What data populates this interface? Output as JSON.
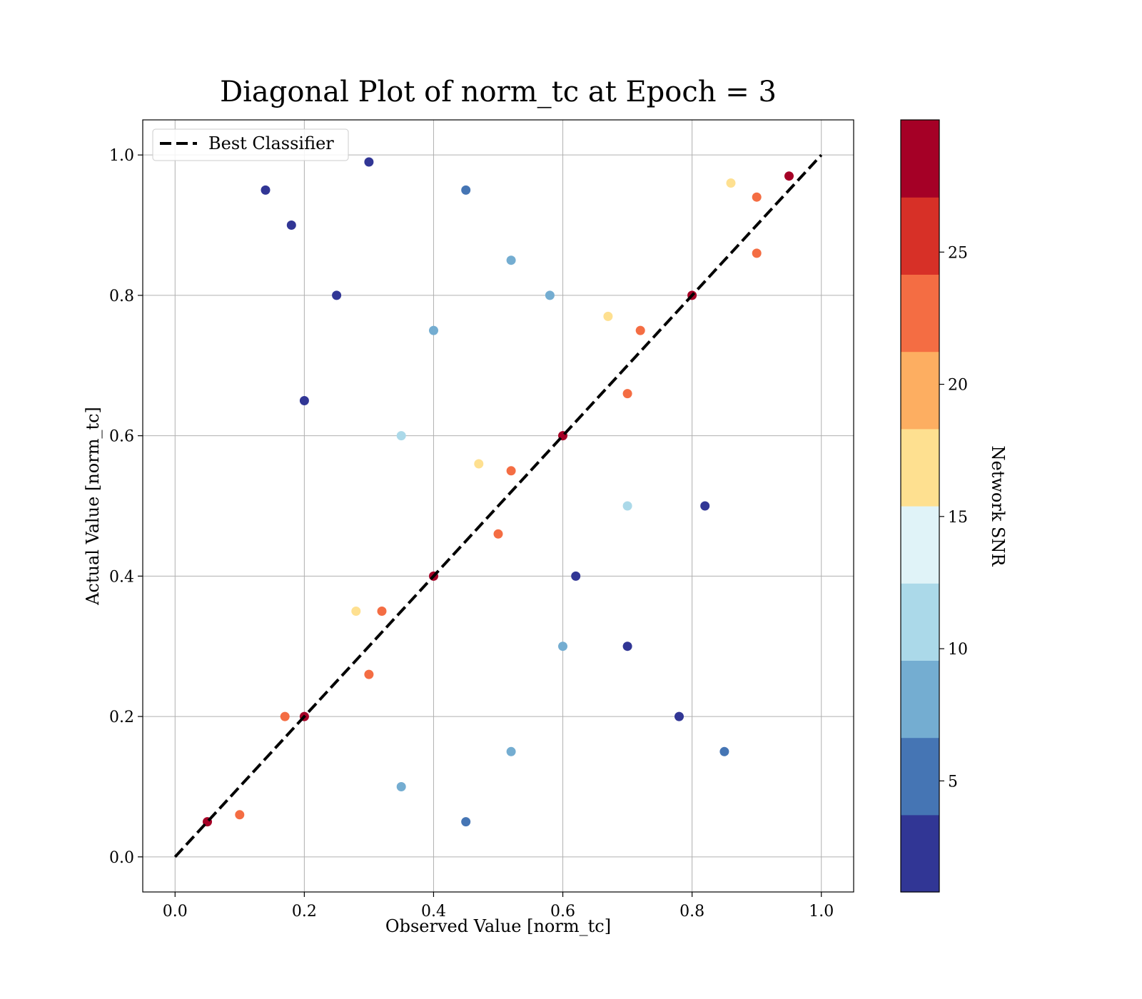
{
  "chart_data": {
    "type": "scatter",
    "title": "Diagonal Plot of norm_tc at Epoch = 3",
    "xlabel": "Observed Value [norm_tc]",
    "ylabel": "Actual Value [norm_tc]",
    "xlim": [
      -0.05,
      1.05
    ],
    "ylim": [
      -0.05,
      1.05
    ],
    "xticks": [
      "0.0",
      "0.2",
      "0.4",
      "0.6",
      "0.8",
      "1.0"
    ],
    "yticks": [
      "0.0",
      "0.2",
      "0.4",
      "0.6",
      "0.8",
      "1.0"
    ],
    "grid": true,
    "legend": {
      "placement": "top-left",
      "entries": [
        {
          "label": "Best Classifier",
          "style": "dashed",
          "color": "#000000"
        }
      ]
    },
    "reference_line": {
      "label": "Best Classifier",
      "x": [
        0.0,
        1.0
      ],
      "y": [
        0.0,
        1.0
      ]
    },
    "colorbar": {
      "label": "Network SNR",
      "range": [
        0.8,
        30.0
      ],
      "ticks": [
        "5",
        "10",
        "15",
        "20",
        "25"
      ],
      "tick_values": [
        5,
        10,
        15,
        20,
        25
      ],
      "colors": [
        "#313695",
        "#4575b4",
        "#74add1",
        "#abd9e9",
        "#e0f3f8",
        "#fee090",
        "#fdae61",
        "#f46d43",
        "#d73027",
        "#a50026"
      ]
    },
    "series": [
      {
        "x": [
          0.05,
          0.2,
          0.4,
          0.6,
          0.8,
          0.95
        ],
        "y": [
          0.05,
          0.2,
          0.4,
          0.6,
          0.8,
          0.97
        ],
        "snr": [
          29,
          29,
          29,
          29,
          29,
          29
        ]
      },
      {
        "x": [
          0.17,
          0.32,
          0.52,
          0.72,
          0.9
        ],
        "y": [
          0.2,
          0.35,
          0.55,
          0.75,
          0.94
        ],
        "snr": [
          22,
          22,
          22,
          22,
          22
        ]
      },
      {
        "x": [
          0.28,
          0.47,
          0.67,
          0.86
        ],
        "y": [
          0.35,
          0.56,
          0.77,
          0.96
        ],
        "snr": [
          17,
          17,
          17,
          17
        ]
      },
      {
        "x": [
          0.1,
          0.3,
          0.5,
          0.7,
          0.9
        ],
        "y": [
          0.06,
          0.26,
          0.46,
          0.66,
          0.86
        ],
        "snr": [
          23,
          23,
          23,
          23,
          23
        ]
      },
      {
        "x": [
          0.35,
          0.45,
          0.52,
          0.6,
          0.7
        ],
        "y": [
          0.1,
          0.05,
          0.15,
          0.3,
          0.5
        ],
        "snr": [
          8,
          6,
          9,
          7,
          10
        ]
      },
      {
        "x": [
          0.45,
          0.52,
          0.58,
          0.4,
          0.35
        ],
        "y": [
          0.95,
          0.85,
          0.8,
          0.75,
          0.6
        ],
        "snr": [
          6,
          9,
          8,
          7,
          11
        ]
      },
      {
        "x": [
          0.62,
          0.7,
          0.78,
          0.85,
          0.82
        ],
        "y": [
          0.4,
          0.3,
          0.2,
          0.15,
          0.5
        ],
        "snr": [
          2,
          3,
          2,
          4,
          2
        ]
      },
      {
        "x": [
          0.14,
          0.18,
          0.2,
          0.25,
          0.3
        ],
        "y": [
          0.95,
          0.9,
          0.65,
          0.8,
          0.99
        ],
        "snr": [
          2,
          2,
          3,
          2,
          3
        ]
      }
    ]
  }
}
